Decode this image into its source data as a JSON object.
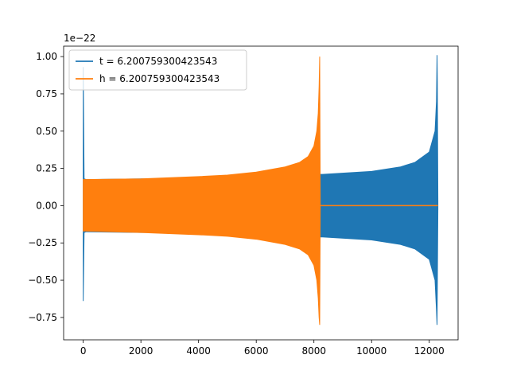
{
  "chart_data": {
    "type": "line",
    "title": "",
    "xlabel": "",
    "ylabel": "",
    "xlim": [
      -680,
      13000
    ],
    "ylim": [
      -0.9,
      1.07
    ],
    "y_offset_label": "1e−22",
    "x_ticks": [
      0,
      2000,
      4000,
      6000,
      8000,
      10000,
      12000
    ],
    "x_tick_labels": [
      "0",
      "2000",
      "4000",
      "6000",
      "8000",
      "10000",
      "12000"
    ],
    "y_ticks": [
      1.0,
      0.75,
      0.5,
      0.25,
      0.0,
      -0.25,
      -0.5,
      -0.75
    ],
    "y_tick_labels": [
      "1.00",
      "0.75",
      "0.50",
      "0.25",
      "0.00",
      "−0.25",
      "−0.50",
      "−0.75"
    ],
    "grid": false,
    "legend_position": "upper-left",
    "series": [
      {
        "name": "t = 6.200759300423543",
        "color": "#1f77b4",
        "x": [
          0,
          30,
          100,
          2000,
          4000,
          6000,
          8000,
          8200,
          8300,
          10000,
          11000,
          11500,
          12000,
          12200,
          12250,
          12270,
          12280,
          12300
        ],
        "upper": [
          0.93,
          0.18,
          0.175,
          0.18,
          0.175,
          0.185,
          0.2,
          0.21,
          0.21,
          0.23,
          0.26,
          0.29,
          0.36,
          0.5,
          0.7,
          1.01,
          0.83,
          0.0
        ],
        "lower": [
          -0.64,
          -0.18,
          -0.175,
          -0.18,
          -0.175,
          -0.185,
          -0.2,
          -0.21,
          -0.21,
          -0.23,
          -0.26,
          -0.29,
          -0.36,
          -0.5,
          -0.7,
          -0.8,
          -0.55,
          0.0
        ]
      },
      {
        "name": "h = 6.200759300423543",
        "color": "#ff7f0e",
        "x": [
          0,
          2000,
          4000,
          5000,
          6000,
          7000,
          7500,
          7800,
          8000,
          8100,
          8150,
          8180,
          8200,
          8220,
          12300
        ],
        "upper": [
          0.175,
          0.18,
          0.195,
          0.205,
          0.225,
          0.26,
          0.29,
          0.33,
          0.4,
          0.5,
          0.62,
          0.8,
          1.0,
          0.0,
          0.0
        ],
        "lower": [
          -0.17,
          -0.18,
          -0.195,
          -0.205,
          -0.225,
          -0.26,
          -0.29,
          -0.33,
          -0.4,
          -0.5,
          -0.62,
          -0.75,
          -0.8,
          0.0,
          0.0
        ]
      }
    ]
  }
}
